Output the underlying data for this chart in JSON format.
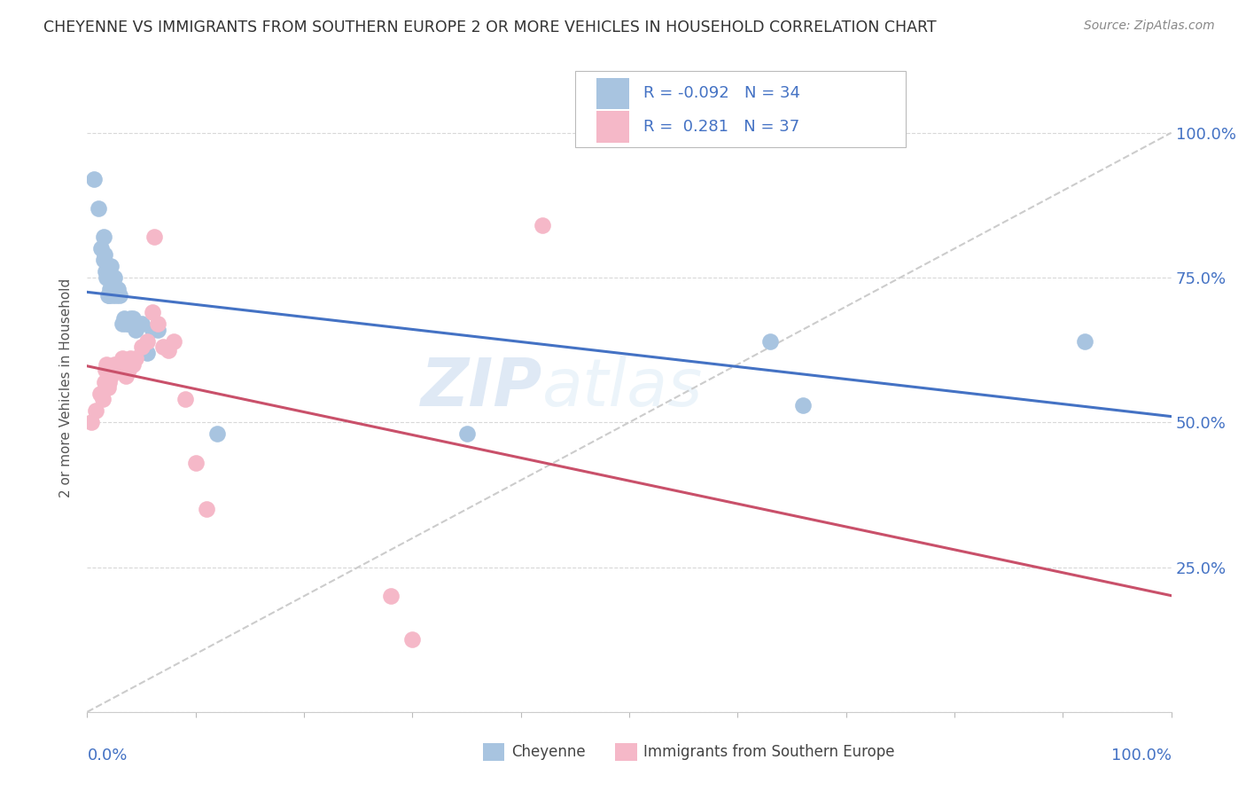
{
  "title": "CHEYENNE VS IMMIGRANTS FROM SOUTHERN EUROPE 2 OR MORE VEHICLES IN HOUSEHOLD CORRELATION CHART",
  "source": "Source: ZipAtlas.com",
  "ylabel": "2 or more Vehicles in Household",
  "legend_label1": "Cheyenne",
  "legend_label2": "Immigrants from Southern Europe",
  "r1": "-0.092",
  "n1": "34",
  "r2": "0.281",
  "n2": "37",
  "watermark_text": "ZIPatlas",
  "blue_color": "#a8c4e0",
  "pink_color": "#f5b8c8",
  "blue_line_color": "#4472c4",
  "pink_line_color": "#c9506a",
  "diagonal_color": "#cccccc",
  "grid_color": "#d8d8d8",
  "right_axis_color": "#4472c4",
  "cheyenne_x": [
    0.006,
    0.01,
    0.013,
    0.015,
    0.015,
    0.016,
    0.017,
    0.018,
    0.019,
    0.02,
    0.021,
    0.022,
    0.023,
    0.025,
    0.026,
    0.027,
    0.028,
    0.03,
    0.032,
    0.034,
    0.036,
    0.038,
    0.04,
    0.042,
    0.045,
    0.05,
    0.055,
    0.06,
    0.065,
    0.12,
    0.35,
    0.63,
    0.66,
    0.92
  ],
  "cheyenne_y": [
    0.92,
    0.87,
    0.8,
    0.82,
    0.78,
    0.79,
    0.76,
    0.75,
    0.72,
    0.72,
    0.73,
    0.77,
    0.72,
    0.75,
    0.73,
    0.72,
    0.73,
    0.72,
    0.67,
    0.68,
    0.67,
    0.67,
    0.68,
    0.68,
    0.66,
    0.67,
    0.62,
    0.66,
    0.66,
    0.48,
    0.48,
    0.64,
    0.53,
    0.64
  ],
  "immig_x": [
    0.004,
    0.008,
    0.012,
    0.014,
    0.016,
    0.017,
    0.018,
    0.019,
    0.02,
    0.021,
    0.022,
    0.023,
    0.025,
    0.026,
    0.028,
    0.03,
    0.032,
    0.034,
    0.036,
    0.038,
    0.04,
    0.042,
    0.045,
    0.05,
    0.055,
    0.06,
    0.062,
    0.065,
    0.07,
    0.075,
    0.08,
    0.09,
    0.1,
    0.11,
    0.28,
    0.3,
    0.42
  ],
  "immig_y": [
    0.5,
    0.52,
    0.55,
    0.54,
    0.57,
    0.59,
    0.6,
    0.56,
    0.57,
    0.58,
    0.58,
    0.59,
    0.6,
    0.59,
    0.59,
    0.6,
    0.61,
    0.59,
    0.58,
    0.59,
    0.61,
    0.6,
    0.61,
    0.63,
    0.64,
    0.69,
    0.82,
    0.67,
    0.63,
    0.625,
    0.64,
    0.54,
    0.43,
    0.35,
    0.2,
    0.125,
    0.84
  ],
  "xlim": [
    0.0,
    1.0
  ],
  "ylim": [
    0.0,
    1.12
  ],
  "yticks": [
    0.0,
    0.25,
    0.5,
    0.75,
    1.0
  ],
  "ytick_labels_right": [
    "",
    "25.0%",
    "50.0%",
    "75.0%",
    "100.0%"
  ]
}
